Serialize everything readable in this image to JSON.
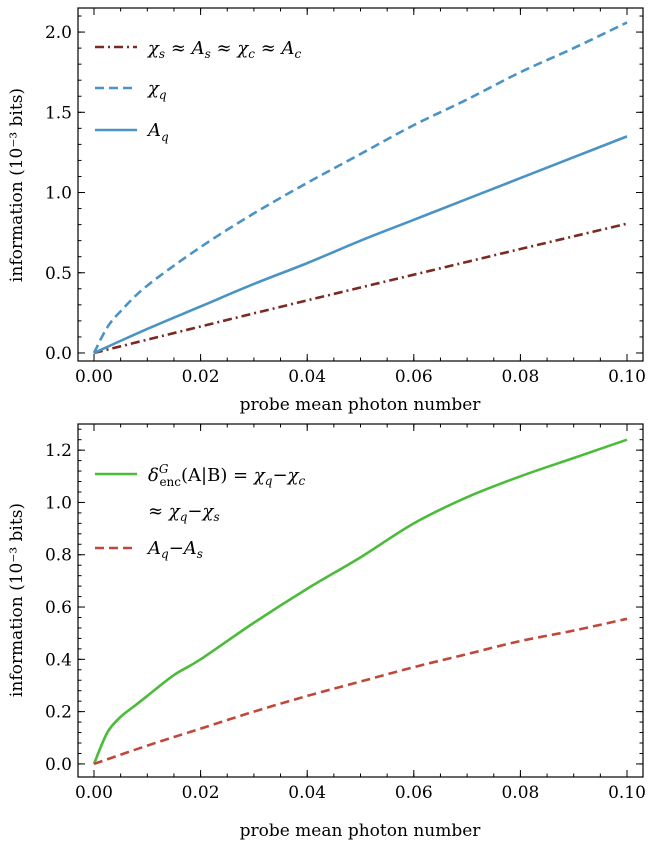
{
  "chart_data": [
    {
      "type": "line",
      "xlabel": "probe mean photon number",
      "ylabel": "information (10⁻³ bits)",
      "xlim": [
        0,
        0.1
      ],
      "ylim": [
        -0.05,
        2.15
      ],
      "xticks": [
        "0.00",
        "0.02",
        "0.04",
        "0.06",
        "0.08",
        "0.10"
      ],
      "xtick_values": [
        0,
        0.02,
        0.04,
        0.06,
        0.08,
        0.1
      ],
      "yticks": [
        "0.0",
        "0.5",
        "1.0",
        "1.5",
        "2.0"
      ],
      "ytick_values": [
        0,
        0.5,
        1.0,
        1.5,
        2.0
      ],
      "grid": false,
      "legend_position": "top-left",
      "series": [
        {
          "name": "χs ≈ As ≈ χc ≈ Ac",
          "color": "#7a2a22",
          "style": "dash-dot",
          "x": [
            0,
            0.01,
            0.02,
            0.03,
            0.04,
            0.05,
            0.06,
            0.07,
            0.08,
            0.09,
            0.1
          ],
          "y": [
            0,
            0.083,
            0.165,
            0.247,
            0.328,
            0.408,
            0.488,
            0.568,
            0.648,
            0.727,
            0.806
          ]
        },
        {
          "name": "χq",
          "color": "#4b93c4",
          "style": "dashed",
          "x": [
            0,
            0.0025,
            0.005,
            0.01,
            0.02,
            0.03,
            0.04,
            0.05,
            0.06,
            0.07,
            0.08,
            0.09,
            0.1
          ],
          "y": [
            0,
            0.16,
            0.26,
            0.42,
            0.66,
            0.87,
            1.06,
            1.24,
            1.42,
            1.58,
            1.75,
            1.9,
            2.06
          ]
        },
        {
          "name": "Aq",
          "color": "#4b93c4",
          "style": "solid",
          "x": [
            0,
            0.01,
            0.02,
            0.03,
            0.04,
            0.05,
            0.06,
            0.07,
            0.08,
            0.09,
            0.1
          ],
          "y": [
            0,
            0.15,
            0.29,
            0.43,
            0.56,
            0.7,
            0.83,
            0.96,
            1.09,
            1.22,
            1.35
          ]
        }
      ]
    },
    {
      "type": "line",
      "xlabel": "probe mean photon number",
      "ylabel": "information (10⁻³ bits)",
      "xlim": [
        0,
        0.1
      ],
      "ylim": [
        -0.05,
        1.3
      ],
      "xticks": [
        "0.00",
        "0.02",
        "0.04",
        "0.06",
        "0.08",
        "0.10"
      ],
      "xtick_values": [
        0,
        0.02,
        0.04,
        0.06,
        0.08,
        0.1
      ],
      "yticks": [
        "0.0",
        "0.2",
        "0.4",
        "0.6",
        "0.8",
        "1.0",
        "1.2"
      ],
      "ytick_values": [
        0,
        0.2,
        0.4,
        0.6,
        0.8,
        1.0,
        1.2
      ],
      "grid": false,
      "legend_position": "top-left",
      "series": [
        {
          "name": "δ G enc(A|B) = χq−χc ≈ χq−χs",
          "color": "#4cbb3b",
          "style": "solid",
          "x": [
            0,
            0.0025,
            0.005,
            0.0075,
            0.01,
            0.015,
            0.02,
            0.03,
            0.04,
            0.05,
            0.06,
            0.07,
            0.08,
            0.09,
            0.1
          ],
          "y": [
            0,
            0.12,
            0.18,
            0.22,
            0.26,
            0.34,
            0.4,
            0.54,
            0.67,
            0.79,
            0.92,
            1.02,
            1.1,
            1.17,
            1.24
          ]
        },
        {
          "name": "Aq−As",
          "color": "#c0483a",
          "style": "dashed",
          "x": [
            0,
            0.01,
            0.02,
            0.03,
            0.04,
            0.05,
            0.06,
            0.07,
            0.08,
            0.09,
            0.1
          ],
          "y": [
            0,
            0.07,
            0.135,
            0.2,
            0.26,
            0.315,
            0.37,
            0.42,
            0.47,
            0.51,
            0.555
          ]
        }
      ]
    }
  ]
}
